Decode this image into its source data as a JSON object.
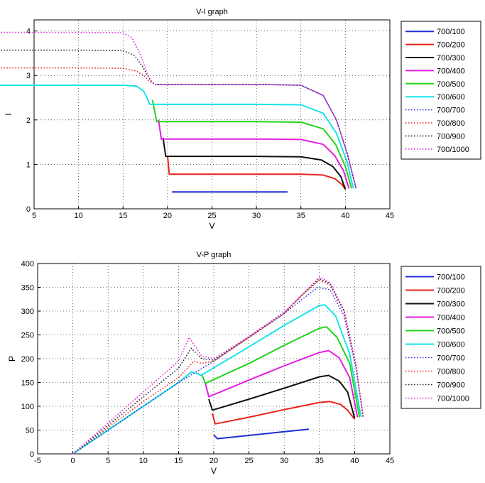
{
  "chart_data": [
    {
      "type": "line",
      "title": "V-I graph",
      "xlabel": "V",
      "ylabel": "I",
      "xlim": [
        5,
        45
      ],
      "ylim": [
        0,
        4.25
      ],
      "xticks": [
        5,
        10,
        15,
        20,
        25,
        30,
        35,
        40,
        45
      ],
      "yticks": [
        0,
        1,
        2,
        3,
        4
      ],
      "grid": true,
      "legend": "outside-right",
      "series": [
        {
          "name": "700/100",
          "color": "#1f2fd6",
          "style": "solid",
          "x": [
            20.5,
            33.5
          ],
          "y": [
            0.38,
            0.38
          ]
        },
        {
          "name": "700/200",
          "color": "#e8221a",
          "style": "solid",
          "x": [
            20.0,
            20.2,
            25,
            30,
            35,
            37.5,
            38.8,
            39.6,
            40.0
          ],
          "y": [
            1.2,
            0.78,
            0.78,
            0.78,
            0.78,
            0.76,
            0.68,
            0.55,
            0.44
          ]
        },
        {
          "name": "700/300",
          "color": "#111111",
          "style": "solid",
          "x": [
            19.5,
            19.8,
            25,
            30,
            35,
            37.3,
            38.6,
            39.5,
            40.0
          ],
          "y": [
            1.6,
            1.18,
            1.18,
            1.18,
            1.17,
            1.1,
            0.95,
            0.72,
            0.44
          ]
        },
        {
          "name": "700/400",
          "color": "#e31fe0",
          "style": "solid",
          "x": [
            19.0,
            19.3,
            25,
            30,
            35,
            37.5,
            38.8,
            39.8,
            40.4
          ],
          "y": [
            2.0,
            1.57,
            1.57,
            1.57,
            1.56,
            1.45,
            1.2,
            0.85,
            0.46
          ]
        },
        {
          "name": "700/500",
          "color": "#22d51a",
          "style": "solid",
          "x": [
            18.3,
            18.8,
            25,
            30,
            35,
            37.5,
            38.9,
            40.0,
            40.7
          ],
          "y": [
            2.45,
            1.96,
            1.96,
            1.96,
            1.95,
            1.8,
            1.45,
            0.95,
            0.46
          ]
        },
        {
          "name": "700/600",
          "color": "#17e3ea",
          "style": "solid",
          "x": [
            0,
            5,
            10,
            15,
            16.5,
            17.3,
            17.8,
            18.0,
            25,
            30,
            35,
            37.5,
            39.0,
            40.2,
            40.9
          ],
          "y": [
            2.78,
            2.78,
            2.78,
            2.78,
            2.76,
            2.65,
            2.45,
            2.35,
            2.35,
            2.35,
            2.34,
            2.15,
            1.7,
            1.05,
            0.46
          ]
        },
        {
          "name": "700/700",
          "color": "#2a36d8",
          "style": "dotted",
          "x": [
            18.8,
            25,
            30,
            35,
            37.5,
            39.0,
            40.2,
            40.9,
            41.2
          ],
          "y": [
            2.8,
            2.8,
            2.8,
            2.78,
            2.55,
            2.0,
            1.25,
            0.7,
            0.46
          ]
        },
        {
          "name": "700/800",
          "color": "#e8221a",
          "style": "dotted",
          "x": [
            0,
            5,
            10,
            15,
            16.5,
            17.3,
            17.8,
            18.2,
            18.6,
            25,
            30,
            35,
            37.5,
            39.0,
            40.2,
            40.9,
            41.2
          ],
          "y": [
            3.17,
            3.17,
            3.17,
            3.16,
            3.1,
            3.0,
            2.9,
            2.84,
            2.8,
            2.8,
            2.8,
            2.78,
            2.55,
            2.0,
            1.25,
            0.7,
            0.46
          ]
        },
        {
          "name": "700/900",
          "color": "#222222",
          "style": "dotted",
          "x": [
            0,
            5,
            10,
            15,
            16.3,
            17.2,
            17.8,
            18.2,
            18.6,
            25,
            30,
            35,
            37.5,
            39.0,
            40.2,
            40.9,
            41.2
          ],
          "y": [
            3.57,
            3.57,
            3.57,
            3.56,
            3.45,
            3.2,
            2.98,
            2.86,
            2.8,
            2.8,
            2.8,
            2.78,
            2.55,
            2.0,
            1.25,
            0.7,
            0.46
          ]
        },
        {
          "name": "700/1000",
          "color": "#e31fe0",
          "style": "dotted",
          "x": [
            0,
            5,
            10,
            15,
            16.0,
            17.0,
            17.7,
            18.2,
            18.6,
            25,
            30,
            35,
            37.5,
            39.0,
            40.2,
            40.9,
            41.2
          ],
          "y": [
            3.97,
            3.97,
            3.97,
            3.96,
            3.85,
            3.45,
            3.05,
            2.87,
            2.8,
            2.8,
            2.8,
            2.78,
            2.55,
            2.0,
            1.25,
            0.7,
            0.46
          ]
        }
      ]
    },
    {
      "type": "line",
      "title": "V-P graph",
      "xlabel": "V",
      "ylabel": "P",
      "xlim": [
        -5,
        45
      ],
      "ylim": [
        0,
        400
      ],
      "xticks": [
        -5,
        0,
        5,
        10,
        15,
        20,
        25,
        30,
        35,
        40,
        45
      ],
      "yticks": [
        0,
        50,
        100,
        150,
        200,
        250,
        300,
        350,
        400
      ],
      "grid": true,
      "legend": "outside-right",
      "series": [
        {
          "name": "700/100",
          "color": "#1f2fd6",
          "style": "solid",
          "x": [
            20.0,
            20.5,
            33.5
          ],
          "y": [
            40,
            32,
            52
          ]
        },
        {
          "name": "700/200",
          "color": "#e8221a",
          "style": "solid",
          "x": [
            19.8,
            20.2,
            25,
            30,
            35,
            36.5,
            38.0,
            39.0,
            40.0
          ],
          "y": [
            85,
            63,
            77,
            93,
            108,
            110,
            104,
            92,
            73
          ]
        },
        {
          "name": "700/300",
          "color": "#111111",
          "style": "solid",
          "x": [
            19.3,
            19.8,
            25,
            30,
            35,
            36.3,
            37.8,
            39.0,
            40.0
          ],
          "y": [
            115,
            92,
            115,
            138,
            162,
            165,
            153,
            130,
            75
          ]
        },
        {
          "name": "700/400",
          "color": "#e31fe0",
          "style": "solid",
          "x": [
            18.8,
            19.3,
            25,
            30,
            35,
            36.3,
            37.8,
            39.3,
            40.4
          ],
          "y": [
            148,
            120,
            155,
            185,
            213,
            217,
            202,
            160,
            77
          ]
        },
        {
          "name": "700/500",
          "color": "#22d51a",
          "style": "solid",
          "x": [
            18.3,
            18.8,
            25,
            30,
            35,
            36.0,
            37.5,
            39.3,
            40.7
          ],
          "y": [
            168,
            148,
            190,
            228,
            264,
            267,
            245,
            190,
            77
          ]
        },
        {
          "name": "700/600",
          "color": "#17e3ea",
          "style": "solid",
          "x": [
            0,
            5,
            10,
            15,
            16.8,
            17.8,
            18.2,
            25,
            30,
            35,
            35.8,
            37.3,
            39.3,
            40.9
          ],
          "y": [
            0,
            50,
            100,
            150,
            172,
            168,
            165,
            225,
            270,
            312,
            313,
            290,
            210,
            78
          ]
        },
        {
          "name": "700/700",
          "color": "#2a36d8",
          "style": "dotted",
          "x": [
            0,
            5,
            10,
            15,
            17.8,
            20,
            25,
            30,
            33,
            34.8,
            36.5,
            38.5,
            40.2,
            41.2
          ],
          "y": [
            0,
            50,
            100,
            150,
            175,
            195,
            245,
            295,
            330,
            350,
            345,
            290,
            180,
            78
          ]
        },
        {
          "name": "700/800",
          "color": "#e8221a",
          "style": "dotted",
          "x": [
            0,
            5,
            10,
            15,
            17.2,
            18.3,
            20,
            25,
            30,
            33,
            35.0,
            36.5,
            38.5,
            40.2,
            41.2
          ],
          "y": [
            0,
            55,
            110,
            160,
            195,
            190,
            195,
            245,
            295,
            340,
            365,
            355,
            300,
            185,
            78
          ]
        },
        {
          "name": "700/900",
          "color": "#222222",
          "style": "dotted",
          "x": [
            0,
            5,
            10,
            15,
            16.8,
            18.3,
            20,
            25,
            30,
            33,
            35.0,
            36.5,
            38.5,
            40.2,
            41.2
          ],
          "y": [
            0,
            60,
            120,
            180,
            222,
            200,
            197,
            245,
            297,
            340,
            368,
            358,
            300,
            185,
            78
          ]
        },
        {
          "name": "700/1000",
          "color": "#e31fe0",
          "style": "dotted",
          "x": [
            0,
            5,
            10,
            15,
            16.5,
            18.3,
            20,
            25,
            30,
            33,
            35.0,
            36.5,
            38.5,
            40.2,
            41.2
          ],
          "y": [
            0,
            65,
            130,
            195,
            245,
            205,
            200,
            247,
            298,
            342,
            372,
            360,
            302,
            186,
            78
          ]
        }
      ]
    }
  ]
}
